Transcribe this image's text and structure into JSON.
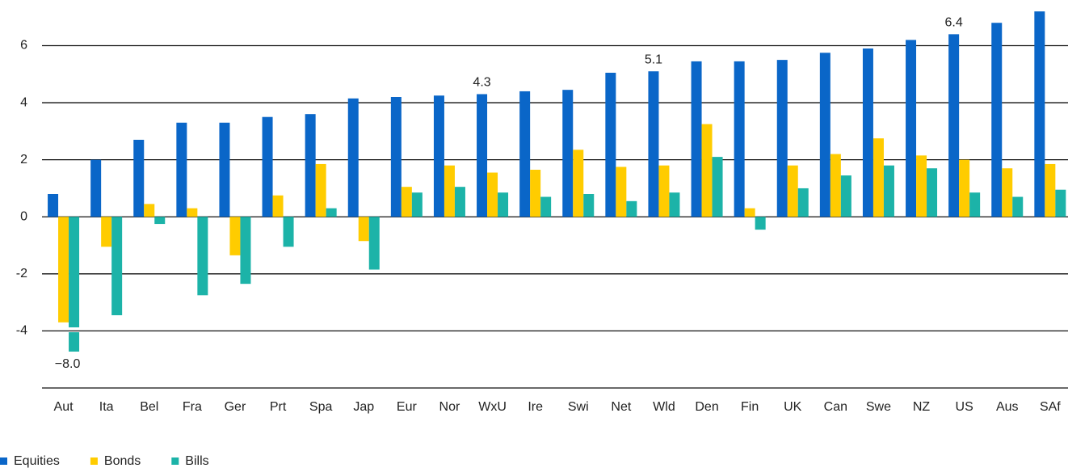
{
  "chart_data": {
    "type": "bar",
    "categories": [
      "Aut",
      "Ita",
      "Bel",
      "Fra",
      "Ger",
      "Prt",
      "Spa",
      "Jap",
      "Eur",
      "Nor",
      "WxU",
      "Ire",
      "Swi",
      "Net",
      "Wld",
      "Den",
      "Fin",
      "UK",
      "Can",
      "Swe",
      "NZ",
      "US",
      "Aus",
      "SAf"
    ],
    "series": [
      {
        "name": "Equities",
        "color": "#0a66c8",
        "values": [
          0.8,
          2.0,
          2.7,
          3.3,
          3.3,
          3.5,
          3.6,
          4.15,
          4.2,
          4.25,
          4.3,
          4.4,
          4.45,
          5.05,
          5.1,
          5.45,
          5.45,
          5.5,
          5.75,
          5.9,
          6.2,
          6.4,
          6.8,
          7.2
        ],
        "value_labels": [
          null,
          null,
          null,
          null,
          null,
          null,
          null,
          null,
          null,
          null,
          "4.3",
          null,
          null,
          null,
          "5.1",
          null,
          null,
          null,
          null,
          null,
          null,
          "6.4",
          null,
          null
        ]
      },
      {
        "name": "Bonds",
        "color": "#ffcc00",
        "values": [
          -3.7,
          -1.05,
          0.45,
          0.3,
          -1.35,
          0.75,
          1.85,
          -0.85,
          1.05,
          1.8,
          1.55,
          1.65,
          2.35,
          1.75,
          1.8,
          3.25,
          0.3,
          1.8,
          2.2,
          2.75,
          2.15,
          2.0,
          1.7,
          1.85
        ]
      },
      {
        "name": "Bills",
        "color": "#1cb3a8",
        "values": [
          -8.0,
          -3.45,
          -0.25,
          -2.75,
          -2.35,
          -1.05,
          0.3,
          -1.85,
          0.85,
          1.05,
          0.85,
          0.7,
          0.8,
          0.55,
          0.85,
          2.1,
          -0.45,
          1.0,
          1.45,
          1.8,
          1.7,
          0.85,
          0.7,
          0.95
        ],
        "value_labels": [
          "−8.0",
          null,
          null,
          null,
          null,
          null,
          null,
          null,
          null,
          null,
          null,
          null,
          null,
          null,
          null,
          null,
          null,
          null,
          null,
          null,
          null,
          null,
          null,
          null
        ]
      }
    ],
    "ylim": [
      -6,
      7.6
    ],
    "yticks": [
      -4,
      -2,
      0,
      2,
      4,
      6
    ],
    "grid": true,
    "legend": "bottom-left"
  }
}
